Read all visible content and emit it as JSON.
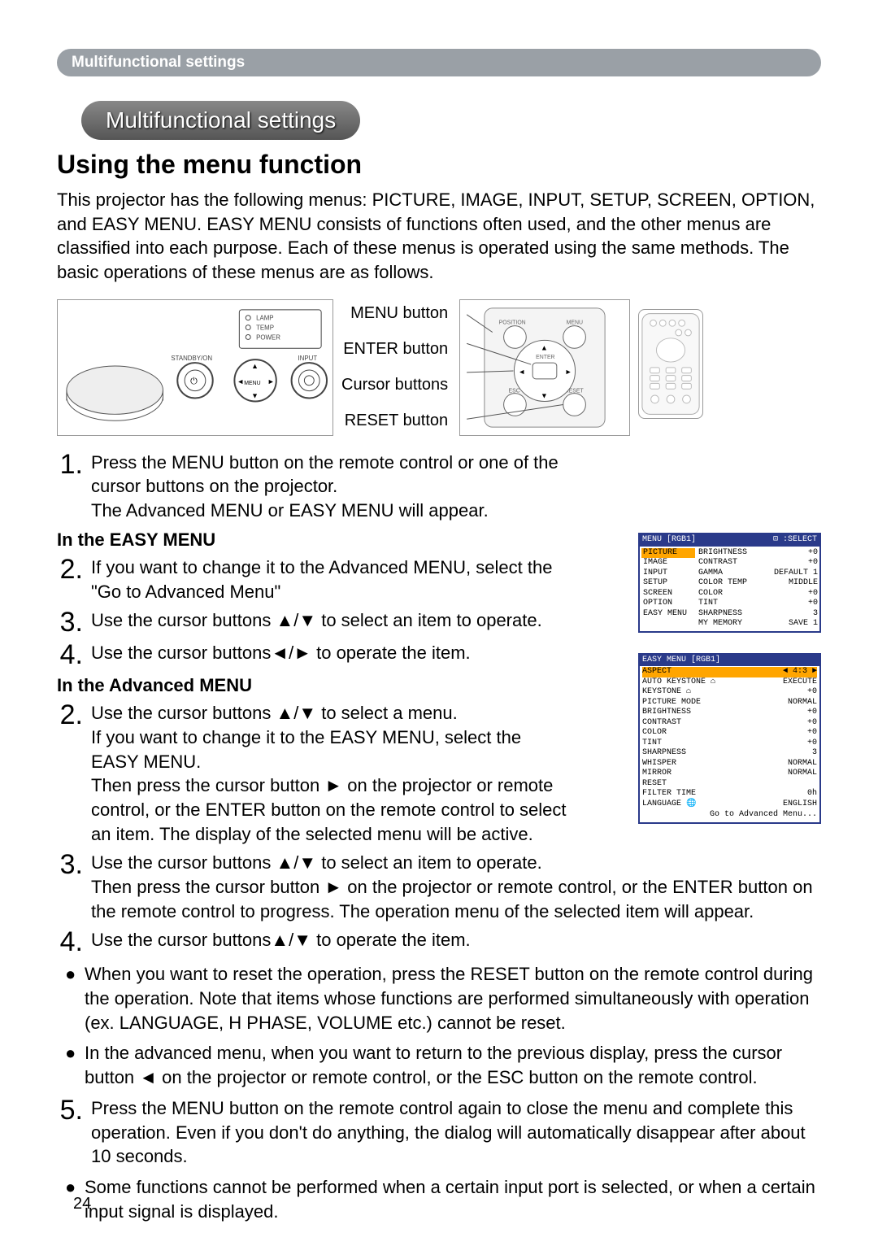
{
  "pillHeader": "Multifunctional settings",
  "tabPill": "Multifunctional settings",
  "sectionTitle": "Using the menu function",
  "intro": "This projector has the following menus: PICTURE, IMAGE, INPUT, SETUP, SCREEN, OPTION, and EASY MENU. EASY MENU consists of functions often used, and the other menus are classified into each purpose. Each of these menus is operated using the same methods. The basic operations of these menus are as follows.",
  "labels": {
    "menuBtn": "MENU button",
    "enterBtn": "ENTER button",
    "cursorBtns": "Cursor buttons",
    "resetBtn": "RESET button"
  },
  "step1a": "Press the MENU button on the remote control or one of the cursor buttons on the projector.",
  "step1b": "The Advanced MENU or EASY MENU will appear.",
  "easyHead": "In the EASY MENU",
  "easy2": "If you want to change it to the Advanced MENU, select the \"Go to Advanced Menu\"",
  "easy3": "Use the cursor buttons ▲/▼ to select an item to operate.",
  "easy4": "Use the cursor buttons◄/► to operate the item.",
  "advHead": "In the Advanced MENU",
  "adv2a": "Use the cursor buttons ▲/▼ to select a menu.",
  "adv2b": "If you want to change it to the EASY MENU, select the EASY MENU.",
  "adv2c": "Then press the cursor button ► on the projector or remote control, or the ENTER button on the remote control to select an item. The display of the selected menu will be active.",
  "adv3a": "Use the cursor buttons ▲/▼ to select an item to operate.",
  "adv3b": "Then press the cursor button ► on the projector or remote control, or the ENTER button on the remote control to progress. The operation menu of the selected item will appear.",
  "adv4": "Use the cursor buttons▲/▼ to operate the item.",
  "bullet1": "When you want to reset the operation, press the RESET button on the remote control during the operation. Note that items whose functions are performed simultaneously with operation (ex. LANGUAGE, H PHASE, VOLUME etc.) cannot be reset.",
  "bullet2": "In the advanced menu, when you want to return to the previous display, press the cursor button ◄ on the projector or remote control, or the ESC button on the remote control.",
  "step5": "Press the MENU button on the remote control again to close the menu and complete this operation. Even if you don't do anything, the dialog will automatically disappear after about 10 seconds.",
  "bullet3": "Some functions cannot be performed when a certain input port is selected, or when a certain input signal is displayed.",
  "pageNum": "24",
  "advMenu": {
    "titleLeft": "MENU [RGB1]",
    "titleRight": "⊡ :SELECT",
    "left": [
      "PICTURE",
      "IMAGE",
      "INPUT",
      "SETUP",
      "SCREEN",
      "OPTION",
      "EASY MENU"
    ],
    "right": [
      [
        "BRIGHTNESS",
        "+0"
      ],
      [
        "CONTRAST",
        "+0"
      ],
      [
        "GAMMA",
        "DEFAULT 1"
      ],
      [
        "COLOR TEMP",
        "MIDDLE"
      ],
      [
        "COLOR",
        "+0"
      ],
      [
        "TINT",
        "+0"
      ],
      [
        "SHARPNESS",
        "3"
      ],
      [
        "MY MEMORY",
        "SAVE 1"
      ]
    ]
  },
  "easyMenu": {
    "title": "EASY MENU [RGB1]",
    "rows": [
      [
        "ASPECT",
        "◄   4:3   ►"
      ],
      [
        "AUTO KEYSTONE ⌂",
        "EXECUTE"
      ],
      [
        "KEYSTONE     ⌂",
        "+0"
      ],
      [
        "PICTURE MODE",
        "NORMAL"
      ],
      [
        "BRIGHTNESS",
        "+0"
      ],
      [
        "CONTRAST",
        "+0"
      ],
      [
        "COLOR",
        "+0"
      ],
      [
        "TINT",
        "+0"
      ],
      [
        "SHARPNESS",
        "3"
      ],
      [
        "WHISPER",
        "NORMAL"
      ],
      [
        "MIRROR",
        "NORMAL"
      ],
      [
        "RESET",
        ""
      ],
      [
        "FILTER TIME",
        "0h"
      ],
      [
        "LANGUAGE   🌐",
        "ENGLISH"
      ]
    ],
    "footer": "Go to Advanced Menu..."
  }
}
